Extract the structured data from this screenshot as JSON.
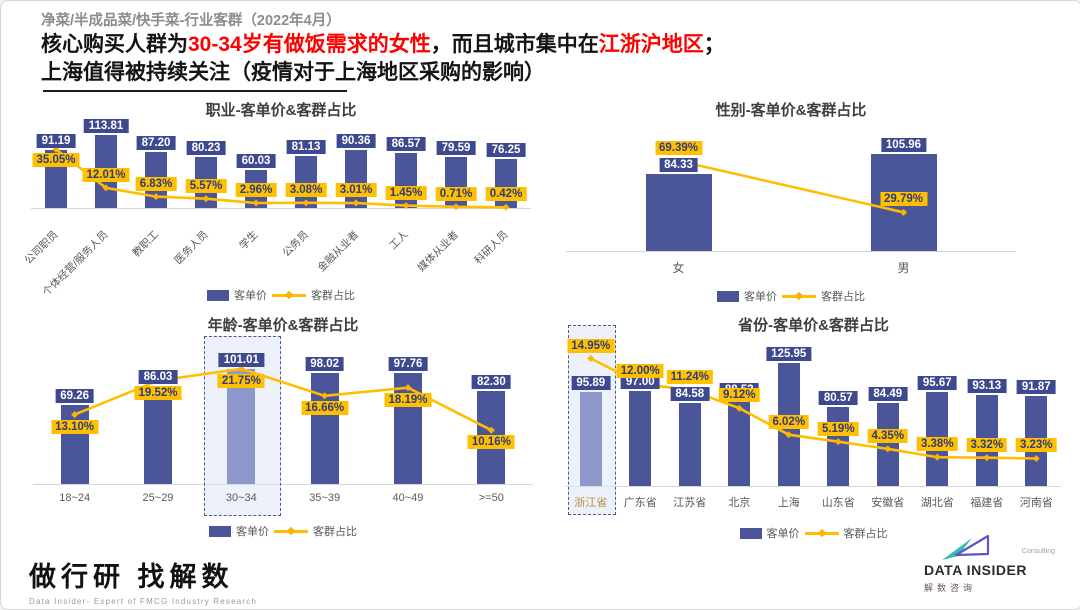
{
  "header": {
    "kicker": "净菜/半成品菜/快手菜-行业客群（2022年4月）",
    "title_segments": [
      {
        "text": "核心购买人群为"
      },
      {
        "text": "30-34岁有做饭需求的女性"
      },
      {
        "text": "，而且城市集中在"
      },
      {
        "text": "江浙沪地区"
      },
      {
        "text": "；"
      }
    ],
    "title_line2": "上海值得被持续关注（疫情对于上海地区采购的影响）"
  },
  "colors": {
    "bar": "#4A5699",
    "bar_highlight": "#8D97C9",
    "value_label_bg": "#3E4A90",
    "percent_label_bg": "#FFC000",
    "line": "#FFBE00",
    "title_red": "#FE0000"
  },
  "chart_data": [
    {
      "key": "occupation",
      "type": "bar+line",
      "title": "职业-客单价&客群占比",
      "categories": [
        "公司职员",
        "个体经营/服务人员",
        "教职工",
        "医务人员",
        "学生",
        "公务员",
        "金融从业者",
        "工人",
        "媒体从业者",
        "科研人员"
      ],
      "series": [
        {
          "name": "客单价",
          "type": "bar",
          "values": [
            91.19,
            113.81,
            87.2,
            80.23,
            60.03,
            81.13,
            90.36,
            86.57,
            79.59,
            76.25
          ]
        },
        {
          "name": "客群占比",
          "type": "line",
          "values_percent": [
            35.05,
            12.01,
            6.83,
            5.57,
            2.96,
            3.08,
            3.01,
            1.45,
            0.71,
            0.42
          ]
        }
      ],
      "value_axis_max": 136,
      "pct_axis_max": 52,
      "highlight_index": null,
      "legend_position": "bottom"
    },
    {
      "key": "gender",
      "type": "bar+line",
      "title": "性别-客单价&客群占比",
      "categories": [
        "女",
        "男"
      ],
      "series": [
        {
          "name": "客单价",
          "type": "bar",
          "values": [
            84.33,
            105.96
          ]
        },
        {
          "name": "客群占比",
          "type": "line",
          "values_percent": [
            69.39,
            29.79
          ]
        }
      ],
      "value_axis_max": 133,
      "pct_axis_max": 94,
      "highlight_index": null,
      "legend_position": "bottom"
    },
    {
      "key": "age",
      "type": "bar+line",
      "title": "年龄-客单价&客群占比",
      "categories": [
        "18~24",
        "25~29",
        "30~34",
        "35~39",
        "40~49",
        ">=50"
      ],
      "series": [
        {
          "name": "客单价",
          "type": "bar",
          "values": [
            69.26,
            86.03,
            101.01,
            98.02,
            97.76,
            82.3
          ]
        },
        {
          "name": "客群占比",
          "type": "line",
          "values_percent": [
            13.1,
            19.52,
            21.75,
            16.66,
            18.19,
            10.16
          ]
        }
      ],
      "value_axis_max": 126,
      "pct_axis_max": 27,
      "highlight_index": 2,
      "legend_position": "bottom"
    },
    {
      "key": "province",
      "type": "bar+line",
      "title": "省份-客单价&客群占比",
      "categories": [
        "浙江省",
        "广东省",
        "江苏省",
        "北京",
        "上海",
        "山东省",
        "安徽省",
        "湖北省",
        "福建省",
        "河南省"
      ],
      "series": [
        {
          "name": "客单价",
          "type": "bar",
          "values": [
            95.89,
            97.0,
            84.58,
            88.53,
            125.95,
            80.57,
            84.49,
            95.67,
            93.13,
            91.87
          ]
        },
        {
          "name": "客群占比",
          "type": "line",
          "values_percent": [
            14.95,
            12.0,
            11.24,
            9.12,
            6.02,
            5.19,
            4.35,
            3.38,
            3.32,
            3.23
          ]
        }
      ],
      "value_axis_max": 148,
      "pct_axis_max": 17,
      "highlight_index": 0,
      "legend_position": "bottom"
    }
  ],
  "footer": {
    "logo_cn": "做行研 找解数",
    "logo_sub": "Data Insider- Expert of FMCG Industry Research",
    "brand_consulting": "Consulting",
    "brand_name": "DATA INSIDER",
    "brand_cn": "解数咨询"
  }
}
